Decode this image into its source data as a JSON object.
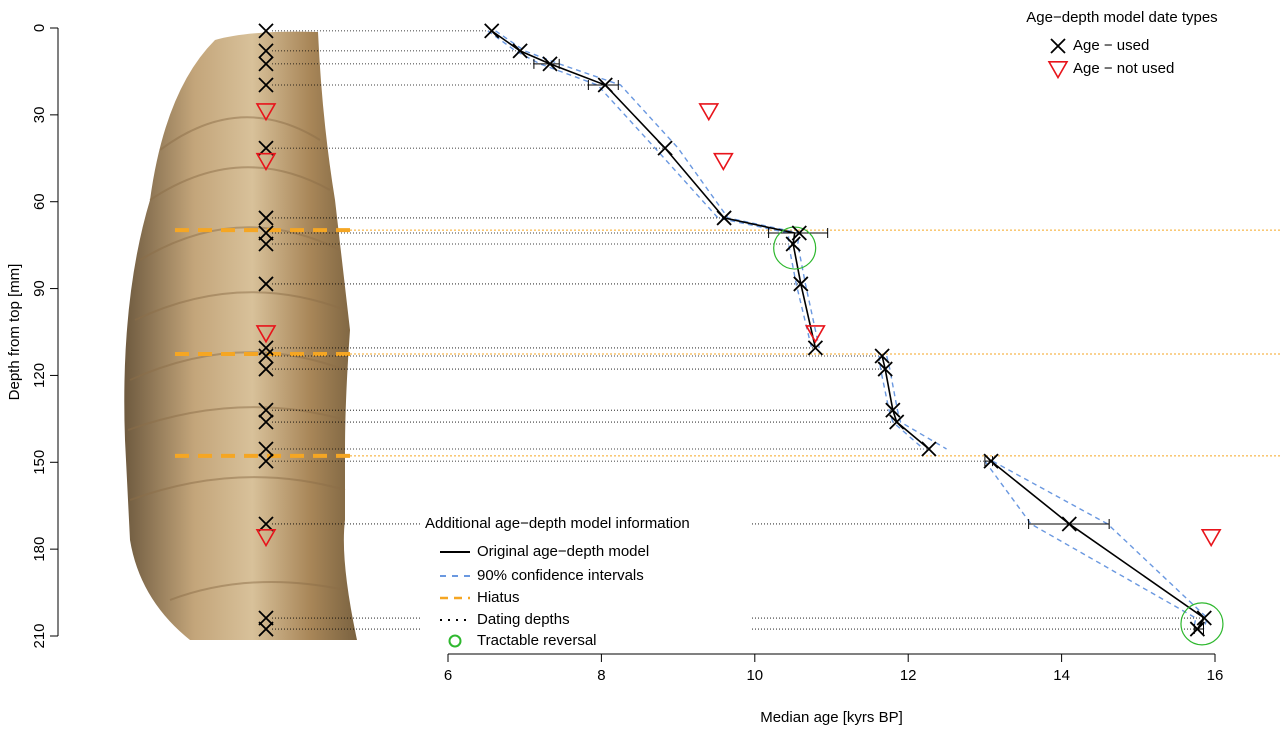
{
  "chart_data": {
    "type": "age-depth",
    "xlabel": "Median age [kyrs BP]",
    "ylabel": "Depth from top [mm]",
    "xlim": [
      6,
      16
    ],
    "xticks": [
      6,
      8,
      10,
      12,
      14,
      16
    ],
    "ylim": [
      0,
      210
    ],
    "yticks": [
      0,
      30,
      60,
      90,
      120,
      150,
      180,
      210
    ],
    "legend_title": "Age−depth model date types",
    "info_legend_title": "Additional age−depth model information",
    "series": [
      {
        "name": "Age − used",
        "marker": "x",
        "color": "#000000",
        "y": [
          1.0,
          7.9,
          12.4,
          19.7,
          41.5,
          65.6,
          70.8,
          74.6,
          88.4,
          110.5,
          113.3,
          117.8,
          132.0,
          136.1,
          145.4,
          149.6,
          171.3,
          203.8,
          207.6
        ],
        "x": [
          6.57,
          6.94,
          7.33,
          8.05,
          8.83,
          9.6,
          10.58,
          10.5,
          10.6,
          10.79,
          11.66,
          11.7,
          11.8,
          11.85,
          12.27,
          13.08,
          14.1,
          15.86,
          15.77
        ],
        "x_min": [
          null,
          null,
          7.12,
          7.83,
          null,
          null,
          10.18,
          null,
          null,
          null,
          null,
          null,
          null,
          null,
          null,
          13.0,
          13.57,
          null,
          15.73
        ],
        "x_max": [
          null,
          null,
          7.45,
          8.22,
          null,
          null,
          10.95,
          null,
          null,
          null,
          null,
          null,
          null,
          null,
          null,
          13.1,
          14.62,
          null,
          15.85
        ]
      },
      {
        "name": "Age − not used",
        "marker": "triangle",
        "color": "#e8141b",
        "y": [
          28.7,
          45.9,
          105.4,
          175.8
        ],
        "x": [
          9.4,
          9.59,
          10.79,
          15.95
        ]
      }
    ],
    "model": {
      "name": "Original age−depth model",
      "color": "#000000",
      "y": [
        1.0,
        7.9,
        12.4,
        19.7,
        41.5,
        65.6,
        70.8,
        74.6,
        88.4,
        110.5,
        112.6,
        113.3,
        117.8,
        132.0,
        136.1,
        145.4,
        147.8,
        149.6,
        171.3,
        203.8,
        207.6
      ],
      "x": [
        6.57,
        6.94,
        7.33,
        8.05,
        8.83,
        9.6,
        10.52,
        10.5,
        10.6,
        10.79,
        null,
        11.66,
        11.7,
        11.8,
        11.85,
        12.27,
        null,
        13.08,
        14.1,
        15.86,
        15.77
      ]
    },
    "ci": {
      "name": "90% confidence intervals",
      "color": "#6a98e0",
      "lower": [
        6.52,
        6.88,
        7.2,
        7.95,
        8.7,
        9.52,
        10.44,
        10.44,
        10.54,
        10.74,
        null,
        11.62,
        11.64,
        11.75,
        11.8,
        12.2,
        null,
        13.0,
        13.6,
        15.75,
        15.72
      ],
      "upper": [
        6.62,
        7.0,
        7.45,
        8.25,
        9.0,
        9.65,
        10.58,
        10.56,
        10.66,
        10.84,
        null,
        11.72,
        11.76,
        11.86,
        11.9,
        12.5,
        null,
        13.1,
        14.6,
        15.9,
        15.85
      ]
    },
    "hiatus": {
      "name": "Hiatus",
      "color": "#f5a623",
      "y": [
        69.8,
        112.6,
        147.8
      ]
    },
    "dating_depths": {
      "name": "Dating depths",
      "color": "#000000"
    },
    "reversals": {
      "name": "Tractable reversal",
      "color": "#2eb82e",
      "x": [
        10.52,
        15.83
      ],
      "y": [
        76.0,
        205.8
      ]
    }
  }
}
